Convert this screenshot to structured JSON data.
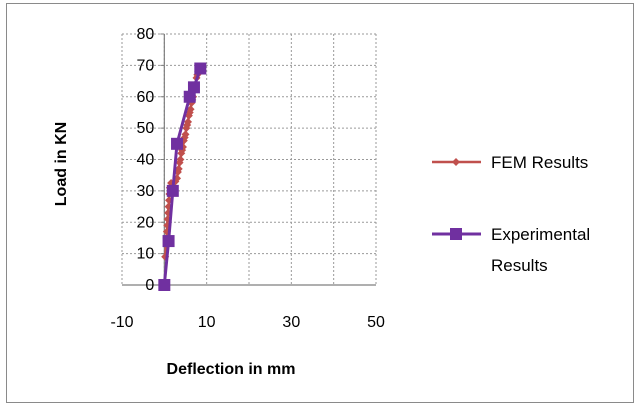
{
  "chart_data": {
    "type": "scatter",
    "xlabel": "Deflection in mm",
    "ylabel": "Load in KN",
    "xlim": [
      -10,
      50
    ],
    "ylim": [
      0,
      80
    ],
    "xticks": [
      -10,
      10,
      30,
      50
    ],
    "yticks": [
      0,
      10,
      20,
      30,
      40,
      50,
      60,
      70,
      80
    ],
    "grid": true,
    "legend_position": "right",
    "series": [
      {
        "name": "FEM Results",
        "color": "#c0504d",
        "marker": "diamond",
        "points": [
          [
            0.2,
            9
          ],
          [
            0.5,
            15
          ],
          [
            0.6,
            17
          ],
          [
            0.7,
            19
          ],
          [
            0.8,
            21
          ],
          [
            0.9,
            23
          ],
          [
            1.0,
            25
          ],
          [
            1.1,
            27
          ],
          [
            1.2,
            29
          ],
          [
            1.3,
            31
          ],
          [
            1.6,
            32.5
          ],
          [
            2.6,
            33
          ],
          [
            3.0,
            34
          ],
          [
            3.2,
            36
          ],
          [
            3.4,
            37
          ],
          [
            3.6,
            39
          ],
          [
            3.8,
            40
          ],
          [
            4.0,
            42
          ],
          [
            4.2,
            43
          ],
          [
            4.4,
            44
          ],
          [
            4.6,
            46
          ],
          [
            4.8,
            47
          ],
          [
            5.0,
            48
          ],
          [
            5.2,
            50
          ],
          [
            5.4,
            51
          ],
          [
            5.6,
            52
          ],
          [
            5.8,
            54
          ],
          [
            6.0,
            55
          ],
          [
            6.2,
            56
          ],
          [
            6.4,
            58
          ],
          [
            6.6,
            59
          ],
          [
            6.8,
            60
          ],
          [
            7.0,
            62
          ],
          [
            7.2,
            63
          ],
          [
            7.4,
            64
          ],
          [
            7.6,
            66
          ],
          [
            7.8,
            67
          ],
          [
            8.0,
            68
          ],
          [
            8.1,
            69
          ]
        ]
      },
      {
        "name": "Experimental Results",
        "color": "#7030a0",
        "marker": "square",
        "points": [
          [
            0,
            0
          ],
          [
            1,
            14
          ],
          [
            2,
            30
          ],
          [
            3,
            45
          ],
          [
            6,
            60
          ],
          [
            7,
            63
          ],
          [
            8.5,
            69
          ]
        ]
      }
    ]
  }
}
